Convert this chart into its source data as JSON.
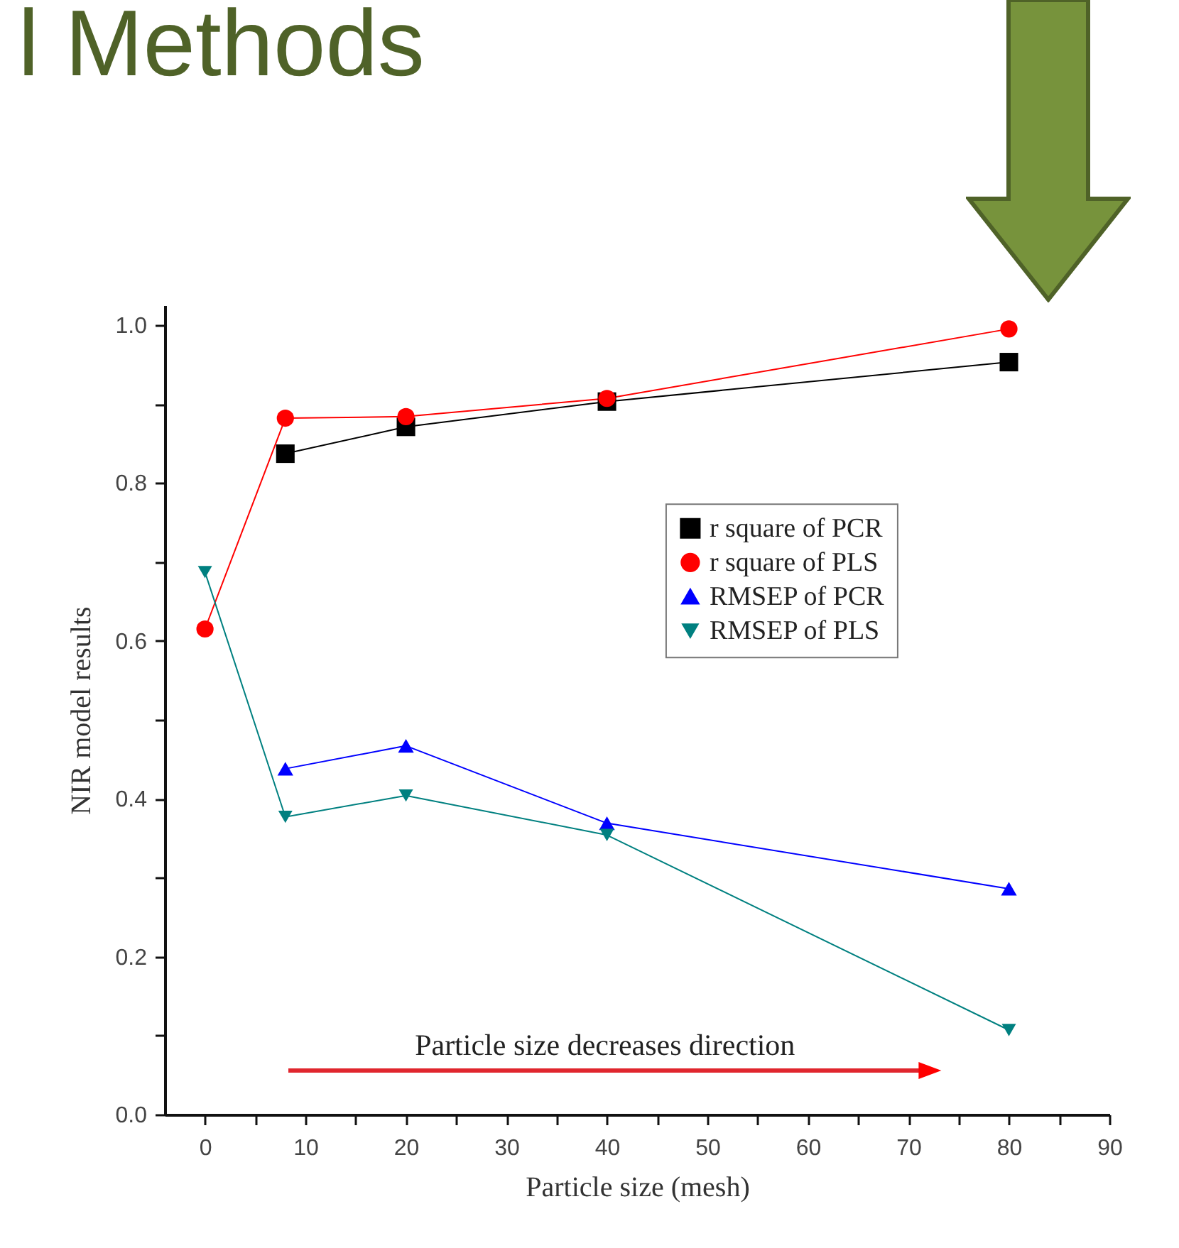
{
  "chart_data": {
    "type": "line",
    "title": "l Methods",
    "xlabel": "Particle size (mesh)",
    "ylabel": "NIR model results",
    "x": [
      0,
      8,
      20,
      40,
      80
    ],
    "series": [
      {
        "name": "r square of PCR",
        "color": "#000000",
        "marker": "square",
        "values": [
          null,
          0.837,
          0.871,
          0.903,
          0.953
        ]
      },
      {
        "name": "r square of PLS",
        "color": "#ff0000",
        "marker": "circle",
        "values": [
          0.615,
          0.882,
          0.884,
          0.907,
          0.995
        ]
      },
      {
        "name": "RMSEP of PCR",
        "color": "#0000ff",
        "marker": "triangle",
        "values": [
          null,
          0.438,
          0.467,
          0.369,
          0.286
        ]
      },
      {
        "name": "RMSEP of PLS",
        "color": "#008080",
        "marker": "triangle-down",
        "values": [
          0.687,
          0.377,
          0.404,
          0.354,
          0.107
        ]
      }
    ],
    "xlim": [
      -4,
      90
    ],
    "ylim": [
      0,
      1.025
    ],
    "xticks": [
      0,
      {
        "value": 5,
        "label": null
      },
      10,
      {
        "value": 15,
        "label": null
      },
      20,
      {
        "value": 25,
        "label": null
      },
      30,
      {
        "value": 35,
        "label": null
      },
      40,
      {
        "value": 45,
        "label": null
      },
      50,
      {
        "value": 55,
        "label": null
      },
      60,
      {
        "value": 65,
        "label": null
      },
      70,
      {
        "value": 75,
        "label": null
      },
      80,
      {
        "value": 85,
        "label": null
      },
      90
    ],
    "yticks": [
      {
        "value": 0,
        "label": "0.0"
      },
      {
        "value": 0.1,
        "label": null
      },
      0.2,
      {
        "value": 0.3,
        "label": null
      },
      0.4,
      {
        "value": 0.5,
        "label": null
      },
      0.6,
      {
        "value": 0.7,
        "label": null
      },
      0.8,
      {
        "value": 0.9,
        "label": null
      },
      {
        "value": 1,
        "label": "1.0"
      }
    ],
    "annotations": [
      "Particle size decreases direction"
    ],
    "legend": "right",
    "grid": false
  }
}
